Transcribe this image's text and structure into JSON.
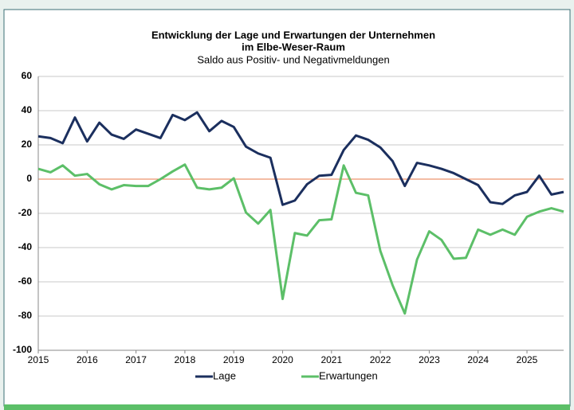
{
  "chart_data": {
    "type": "line",
    "title": "Entwicklung der Lage und Erwartungen der Unternehmen",
    "title2": "im Elbe-Weser-Raum",
    "subtitle": "Saldo aus Positiv- und Negativmeldungen",
    "x": [
      2015,
      2015.25,
      2015.5,
      2015.75,
      2016,
      2016.25,
      2016.5,
      2016.75,
      2017,
      2017.25,
      2017.5,
      2017.75,
      2018,
      2018.25,
      2018.5,
      2018.75,
      2019,
      2019.25,
      2019.5,
      2019.75,
      2020,
      2020.25,
      2020.5,
      2020.75,
      2021,
      2021.25,
      2021.5,
      2021.75,
      2022,
      2022.25,
      2022.5,
      2022.75,
      2023,
      2023.25,
      2023.5,
      2023.75,
      2024,
      2024.25,
      2024.5,
      2024.75,
      2025,
      2025.25,
      2025.5,
      2025.75
    ],
    "series": [
      {
        "name": "Lage",
        "color": "#1b2f5e",
        "values": [
          25,
          24,
          21,
          36,
          22,
          33,
          26,
          23.5,
          29,
          26.5,
          24,
          37.5,
          34.5,
          39,
          28,
          34,
          30.5,
          19,
          15,
          12.5,
          -15,
          -12.5,
          -3,
          2,
          2.5,
          17,
          25.5,
          23,
          18.5,
          10.5,
          -4,
          9.5,
          8,
          6,
          3.5,
          0,
          -3.5,
          -13.5,
          -14.5,
          -9.5,
          -7.5,
          2,
          -9,
          -7.5
        ]
      },
      {
        "name": "Erwartungen",
        "color": "#5cbf68",
        "values": [
          6,
          4,
          8,
          2,
          3,
          -3,
          -6,
          -3.5,
          -4,
          -4,
          0,
          4.5,
          8.5,
          -5,
          -6,
          -5,
          0.5,
          -19.5,
          -26,
          -18,
          -70,
          -31.5,
          -33,
          -24,
          -23.5,
          8,
          -8,
          -9.5,
          -42,
          -62,
          -78.5,
          -47,
          -30.5,
          -35.5,
          -46.5,
          -46,
          -29.5,
          -32.5,
          -29.5,
          -32.5,
          -22,
          -19,
          -17,
          -19
        ]
      }
    ],
    "xlim": [
      2015,
      2025.75
    ],
    "xticks": [
      2015,
      2016,
      2017,
      2018,
      2019,
      2020,
      2021,
      2022,
      2023,
      2024,
      2025
    ],
    "ylim": [
      -100,
      60
    ],
    "yticks": [
      -100,
      -80,
      -60,
      -40,
      -20,
      0,
      20,
      40,
      60
    ],
    "grid": true,
    "zero_line_color": "#e8784a",
    "legend": "bottom"
  }
}
